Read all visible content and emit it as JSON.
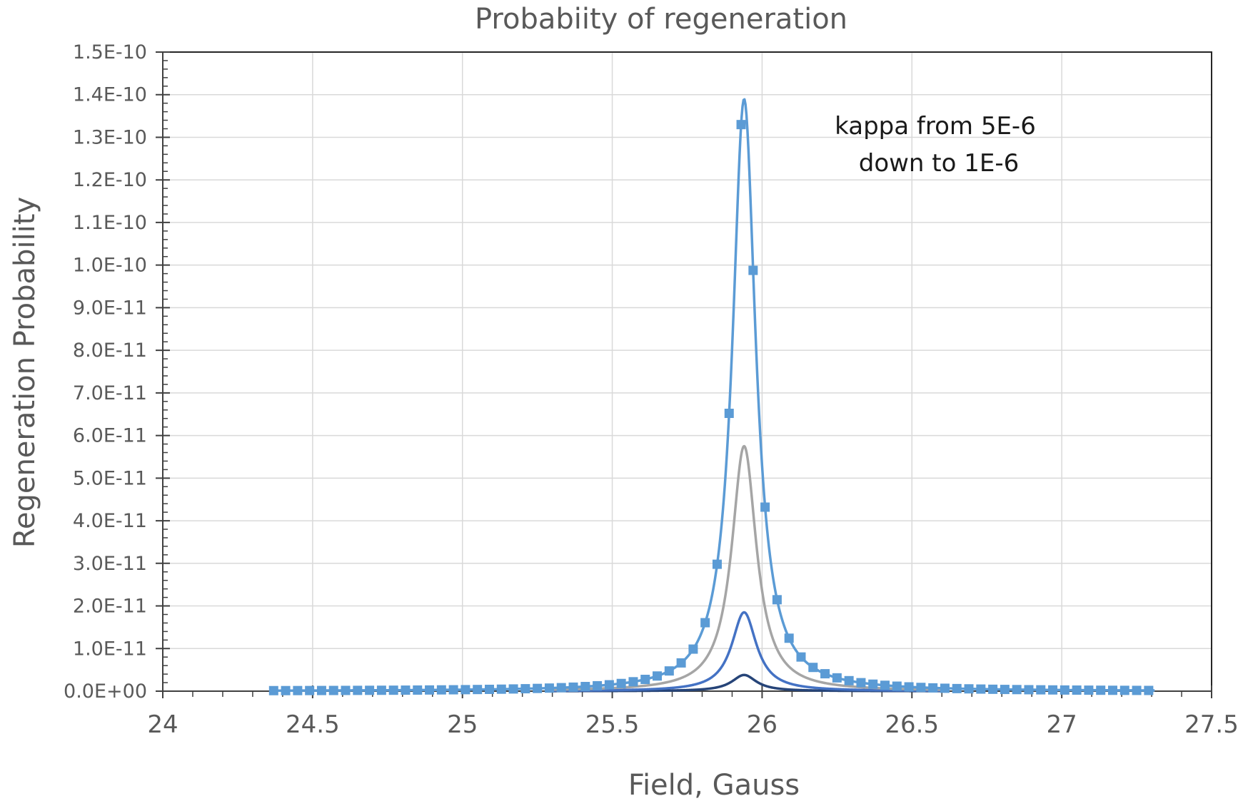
{
  "chart_data": {
    "type": "line",
    "title": "Probabiity of regeneration",
    "xlabel": "Field, Gauss",
    "ylabel": "Regeneration Probability",
    "xlim": [
      24,
      27.5
    ],
    "ylim": [
      0,
      1.5e-10
    ],
    "grid": true,
    "x_ticks": [
      24,
      24.5,
      25,
      25.5,
      26,
      26.5,
      27,
      27.5
    ],
    "x_tick_labels": [
      "24",
      "24.5",
      "25",
      "25.5",
      "26",
      "26.5",
      "27",
      "27.5"
    ],
    "y_ticks": [
      0,
      1e-11,
      2e-11,
      3e-11,
      4e-11,
      5e-11,
      6e-11,
      7e-11,
      8e-11,
      9e-11,
      1e-10,
      1.1e-10,
      1.2e-10,
      1.3e-10,
      1.4e-10,
      1.5e-10
    ],
    "y_tick_labels": [
      "0.0E+00",
      "1.0E-11",
      "2.0E-11",
      "3.0E-11",
      "4.0E-11",
      "5.0E-11",
      "6.0E-11",
      "7.0E-11",
      "8.0E-11",
      "9.0E-11",
      "1.0E-10",
      "1.1E-10",
      "1.2E-10",
      "1.3E-10",
      "1.4E-10",
      "1.5E-10"
    ],
    "annotation": [
      "kappa from 5E-6",
      "down to 1E-6"
    ],
    "series": [
      {
        "color": "#5b9bd5",
        "marker": "square",
        "peak_x": 25.94,
        "peak_y": 1.39e-10,
        "halfwidth": 0.047,
        "x_start": 24.37,
        "x_end": 27.31,
        "marker_step": 0.04
      },
      {
        "color": "#a5a5a5",
        "marker": "none",
        "peak_x": 25.94,
        "peak_y": 5.75e-11,
        "halfwidth": 0.05
      },
      {
        "color": "#4472c4",
        "marker": "none",
        "peak_x": 25.94,
        "peak_y": 1.85e-11,
        "halfwidth": 0.05
      },
      {
        "color": "#264478",
        "marker": "none",
        "peak_x": 25.94,
        "peak_y": 3.8e-12,
        "halfwidth": 0.05
      }
    ]
  }
}
